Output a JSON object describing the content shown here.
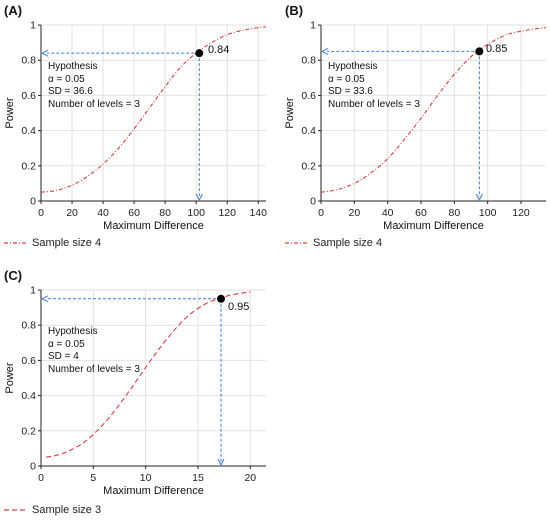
{
  "panels": [
    {
      "label": "(A)",
      "hypothesis": [
        "Hypothesis",
        "α = 0.05",
        "SD = 36.6",
        "Number of levels = 3"
      ],
      "legend": "Sample size 4",
      "callout": "0.84"
    },
    {
      "label": "(B)",
      "hypothesis": [
        "Hypothesis",
        "α = 0.05",
        "SD = 33.6",
        "Number of levels = 3"
      ],
      "legend": "Sample size 4",
      "callout": "0.85"
    },
    {
      "label": "(C)",
      "hypothesis": [
        "Hypothesis",
        "α = 0.05",
        "SD = 4",
        "Number of levels = 3"
      ],
      "legend": "Sample size 3",
      "callout": "0.95"
    }
  ],
  "colors": {
    "curve": "#d94040",
    "guide": "#3a7bd5",
    "grid": "#e2e2e2",
    "axis": "#222222",
    "point": "#000000"
  },
  "chart_data": [
    {
      "type": "line",
      "title": "",
      "xlabel": "Maximum Difference",
      "ylabel": "Power",
      "xlim": [
        0,
        145
      ],
      "ylim": [
        0,
        1.0
      ],
      "xticks": [
        0,
        20,
        40,
        60,
        80,
        100,
        120,
        140
      ],
      "yticks": [
        0.0,
        0.2,
        0.4,
        0.6,
        0.8,
        1.0
      ],
      "grid": true,
      "legend_position": "bottom-left",
      "series": [
        {
          "name": "Sample size 4",
          "line_style": "dash-dot",
          "x": [
            0,
            10,
            20,
            30,
            40,
            50,
            60,
            70,
            80,
            90,
            100,
            110,
            120,
            130,
            140,
            145
          ],
          "y": [
            0.05,
            0.06,
            0.09,
            0.14,
            0.21,
            0.3,
            0.41,
            0.53,
            0.65,
            0.76,
            0.84,
            0.9,
            0.945,
            0.97,
            0.985,
            0.99
          ]
        }
      ],
      "highlight": {
        "x": 102,
        "y": 0.84,
        "label": "0.84"
      }
    },
    {
      "type": "line",
      "title": "",
      "xlabel": "Maximum Difference",
      "ylabel": "Power",
      "xlim": [
        0,
        135
      ],
      "ylim": [
        0,
        1.0
      ],
      "xticks": [
        0,
        20,
        40,
        60,
        80,
        100,
        120
      ],
      "yticks": [
        0.0,
        0.2,
        0.4,
        0.6,
        0.8,
        1.0
      ],
      "grid": true,
      "legend_position": "bottom-left",
      "series": [
        {
          "name": "Sample size 4",
          "line_style": "dash-dot",
          "x": [
            0,
            10,
            20,
            30,
            40,
            50,
            60,
            70,
            80,
            90,
            100,
            110,
            120,
            130,
            135
          ],
          "y": [
            0.05,
            0.065,
            0.1,
            0.16,
            0.24,
            0.35,
            0.47,
            0.6,
            0.72,
            0.82,
            0.89,
            0.94,
            0.965,
            0.98,
            0.985
          ]
        }
      ],
      "highlight": {
        "x": 95,
        "y": 0.85,
        "label": "0.85"
      }
    },
    {
      "type": "line",
      "title": "",
      "xlabel": "Maximum Difference",
      "ylabel": "Power",
      "xlim": [
        0,
        21.5
      ],
      "ylim": [
        0,
        1.0
      ],
      "xticks": [
        0,
        5,
        10,
        15,
        20
      ],
      "yticks": [
        0.0,
        0.2,
        0.4,
        0.6,
        0.8,
        1.0
      ],
      "grid": true,
      "legend_position": "bottom-left",
      "series": [
        {
          "name": "Sample size 3",
          "line_style": "dashed",
          "x": [
            0.5,
            2,
            4,
            6,
            8,
            10,
            12,
            14,
            16,
            17.2,
            18,
            20
          ],
          "y": [
            0.05,
            0.07,
            0.13,
            0.24,
            0.39,
            0.56,
            0.72,
            0.85,
            0.93,
            0.95,
            0.97,
            0.99
          ]
        }
      ],
      "highlight": {
        "x": 17.2,
        "y": 0.95,
        "label": "0.95"
      }
    }
  ]
}
